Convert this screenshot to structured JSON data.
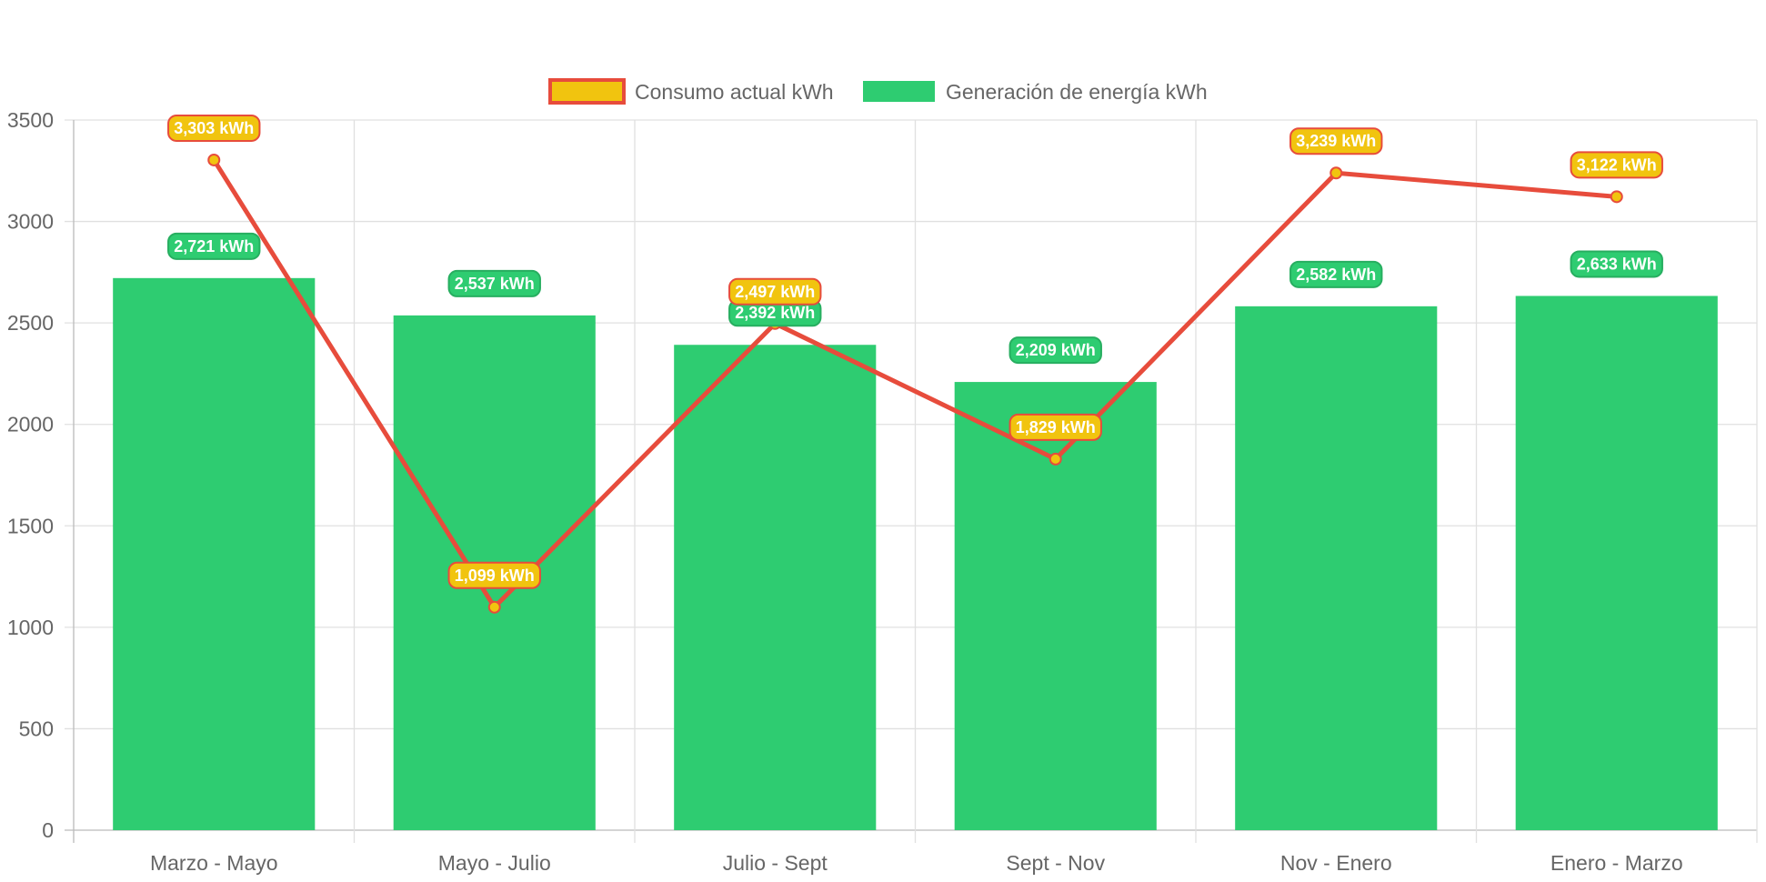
{
  "chart_data": {
    "type": "bar",
    "title": "",
    "xlabel": "",
    "ylabel": "",
    "categories": [
      "Marzo - Mayo",
      "Mayo - Julio",
      "Julio - Sept",
      "Sept - Nov",
      "Nov - Enero",
      "Enero - Marzo"
    ],
    "ylim": [
      0,
      3500
    ],
    "yticks": [
      0,
      500,
      1000,
      1500,
      2000,
      2500,
      3000,
      3500
    ],
    "grid": true,
    "legend_position": "top-center",
    "series": [
      {
        "name": "Consumo actual kWh",
        "type": "line",
        "values": [
          3303,
          1099,
          2497,
          1829,
          3239,
          3122
        ],
        "data_labels": [
          "3,303 kWh",
          "1,099 kWh",
          "2,497 kWh",
          "1,829 kWh",
          "3,239 kWh",
          "3,122 kWh"
        ],
        "line_color": "#e74c3c",
        "fill_color": "#f1c40f"
      },
      {
        "name": "Generación de energía kWh",
        "type": "bar",
        "values": [
          2721,
          2537,
          2392,
          2209,
          2582,
          2633
        ],
        "data_labels": [
          "2,721 kWh",
          "2,537 kWh",
          "2,392 kWh",
          "2,209 kWh",
          "2,582 kWh",
          "2,633 kWh"
        ],
        "bar_color": "#2ecc71",
        "label_border_color": "#27ae60"
      }
    ]
  }
}
